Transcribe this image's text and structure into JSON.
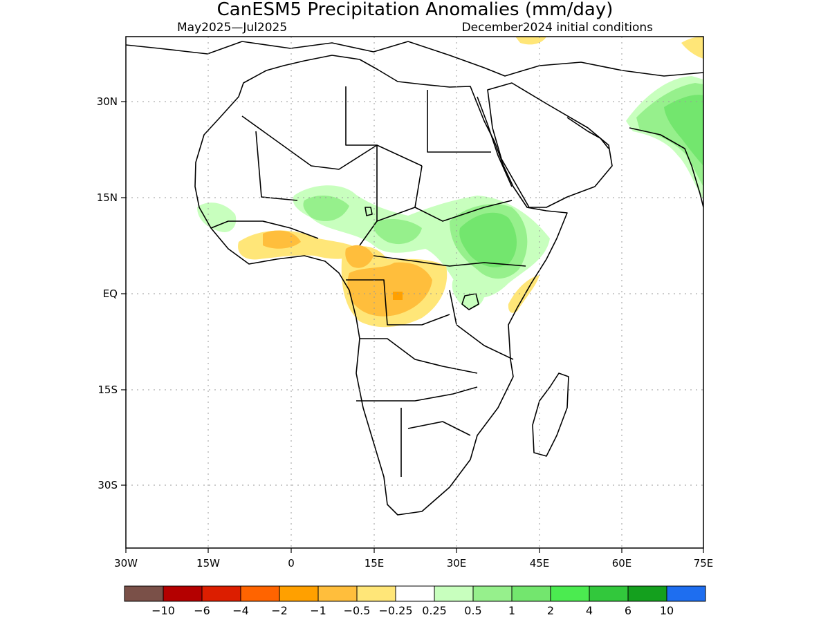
{
  "title": "CanESM5 Precipitation Anomalies (mm/day)",
  "subtitle_left": "May2025—Jul2025",
  "subtitle_right": "December2024 initial conditions",
  "map": {
    "lon_range": [
      -30,
      75
    ],
    "lat_range": [
      -41,
      40
    ],
    "lon_ticks": [
      "30W",
      "15W",
      "0",
      "15E",
      "30E",
      "45E",
      "60E",
      "75E"
    ],
    "lat_ticks": [
      "30N",
      "15N",
      "EQ",
      "15S",
      "30S"
    ],
    "grid": "dotted"
  },
  "legend": {
    "colors": [
      "#7a5048",
      "#b40000",
      "#dc1e00",
      "#ff6400",
      "#ffa000",
      "#ffbe3c",
      "#ffe678",
      "#ffffff",
      "#c8ffbe",
      "#96f08c",
      "#73e66e",
      "#4beb50",
      "#32c83c",
      "#14a01e",
      "#1e6ef0"
    ],
    "labels": [
      "−10",
      "−6",
      "−4",
      "−2",
      "−1",
      "−0.5",
      "−0.25",
      "0.25",
      "0.5",
      "1",
      "2",
      "4",
      "6",
      "10"
    ]
  }
}
